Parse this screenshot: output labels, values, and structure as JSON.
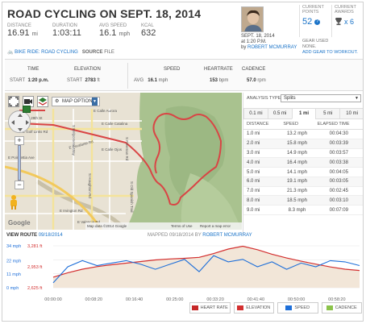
{
  "header": {
    "title": "ROAD CYCLING ON SEPT. 18, 2014",
    "stats": [
      {
        "label": "DISTANCE",
        "value": "16.91",
        "unit": "mi"
      },
      {
        "label": "DURATION",
        "value": "1:03:11",
        "unit": ""
      },
      {
        "label": "AVG SPEED",
        "value": "16.1",
        "unit": "mph"
      },
      {
        "label": "KCAL",
        "value": "632",
        "unit": ""
      }
    ],
    "sport_label": "BIKE RIDE: ROAD CYCLING",
    "source_label": "SOURCE",
    "source_value": "FILE"
  },
  "user": {
    "date": "SEPT. 18, 2014",
    "time": "at 1:20 P.M.",
    "by": "by",
    "name": "ROBERT MCMURRAY"
  },
  "points": {
    "label": "CURRENT POINTS",
    "value": "52"
  },
  "awards": {
    "label": "CURRENT AWARDS",
    "value": "6",
    "prefix": "x"
  },
  "gear": {
    "label": "GEAR USED",
    "value": "NONE.",
    "link": "ADD GEAR TO WORKOUT."
  },
  "substats": {
    "time_head": "TIME",
    "elev_head": "ELEVATION",
    "speed_head": "SPEED",
    "hr_head": "HEARTRATE",
    "cad_head": "CADENCE",
    "start_label": "START",
    "start_time": "1:20 p.m.",
    "start_elev": "2783",
    "elev_unit": "ft",
    "avg_label": "AVG",
    "avg_speed": "16.1",
    "speed_unit": "mph",
    "hr": "153",
    "hr_unit": "bpm",
    "cad": "57.0",
    "cad_unit": "rpm"
  },
  "map": {
    "options_label": "MAP OPTIONS",
    "streets": [
      "E 29th St",
      "E Golf Links Rd",
      "E Calle Aurora",
      "E Calle Catalina",
      "E Calle Ojos",
      "S Freeman Rd",
      "S Old Spanish Trail",
      "E Escalante Rd",
      "E Irvington Rd",
      "E Valencia Rd",
      "S Houghton Rd",
      "S Melpomene Way",
      "E Poinsettia Ave"
    ],
    "google": "Google",
    "attribution": "Map data ©2014 Google",
    "terms": "Terms of Use",
    "report": "Report a map error"
  },
  "splits": {
    "analysis_label": "ANALYSIS TYPE",
    "analysis_value": "Splits",
    "tabs": [
      "0.1 mi",
      "0.5 mi",
      "1 mi",
      "5 mi",
      "10 mi"
    ],
    "active_tab": 2,
    "headers": [
      "DISTANCE",
      "SPEED",
      "ELAPSED TIME"
    ],
    "rows": [
      [
        "1.0 mi",
        "13.2 mph",
        "00:04:30"
      ],
      [
        "2.0 mi",
        "15.8 mph",
        "00:03:39"
      ],
      [
        "3.0 mi",
        "14.9 mph",
        "00:03:57"
      ],
      [
        "4.0 mi",
        "16.4 mph",
        "00:03:38"
      ],
      [
        "5.0 mi",
        "14.1 mph",
        "00:04:05"
      ],
      [
        "6.0 mi",
        "19.1 mph",
        "00:03:05"
      ],
      [
        "7.0 mi",
        "21.3 mph",
        "00:02:45"
      ],
      [
        "8.0 mi",
        "18.5 mph",
        "00:03:10"
      ],
      [
        "9.0 mi",
        "8.3 mph",
        "00:07:09"
      ]
    ]
  },
  "route": {
    "view_label": "VIEW ROUTE",
    "view_date": "09/18/2014",
    "mapped_label": "MAPPED 09/18/2014 BY",
    "mapped_by": "ROBERT MCMURRAY"
  },
  "chart_data": {
    "type": "line",
    "x_ticks": [
      "00:00:00",
      "00:08:20",
      "00:16:40",
      "00:25:00",
      "00:33:20",
      "00:41:40",
      "00:50:00",
      "00:58:20"
    ],
    "y_left": [
      "34 mph",
      "22 mph",
      "11 mph",
      "0 mph"
    ],
    "y_right": [
      "3,281 ft",
      "2,953 ft",
      "2,625 ft"
    ],
    "x_minutes": [
      0,
      3,
      6,
      9,
      12,
      15,
      18,
      21,
      24,
      27,
      30,
      33,
      36,
      39,
      42,
      45,
      48,
      51,
      54,
      57,
      60,
      63
    ],
    "speed_mph": [
      4,
      17,
      22,
      18,
      20,
      22,
      19,
      15,
      19,
      23,
      13,
      26,
      21,
      23,
      17,
      21,
      15,
      20,
      17,
      22,
      21,
      18
    ],
    "elevation_ft": [
      2790,
      2860,
      2915,
      2955,
      2985,
      3010,
      3035,
      3060,
      3075,
      3085,
      3100,
      3160,
      3230,
      3275,
      3220,
      3150,
      3090,
      3040,
      2995,
      2950,
      2915,
      2895
    ],
    "speed_range": [
      0,
      34
    ],
    "elev_range": [
      2625,
      3281
    ],
    "series": [
      {
        "name": "HEART RATE",
        "color": "#c62828"
      },
      {
        "name": "ELEVATION",
        "color": "#d32f2f"
      },
      {
        "name": "SPEED",
        "color": "#1e6fd9"
      },
      {
        "name": "CADENCE",
        "color": "#8bc34a"
      }
    ]
  }
}
